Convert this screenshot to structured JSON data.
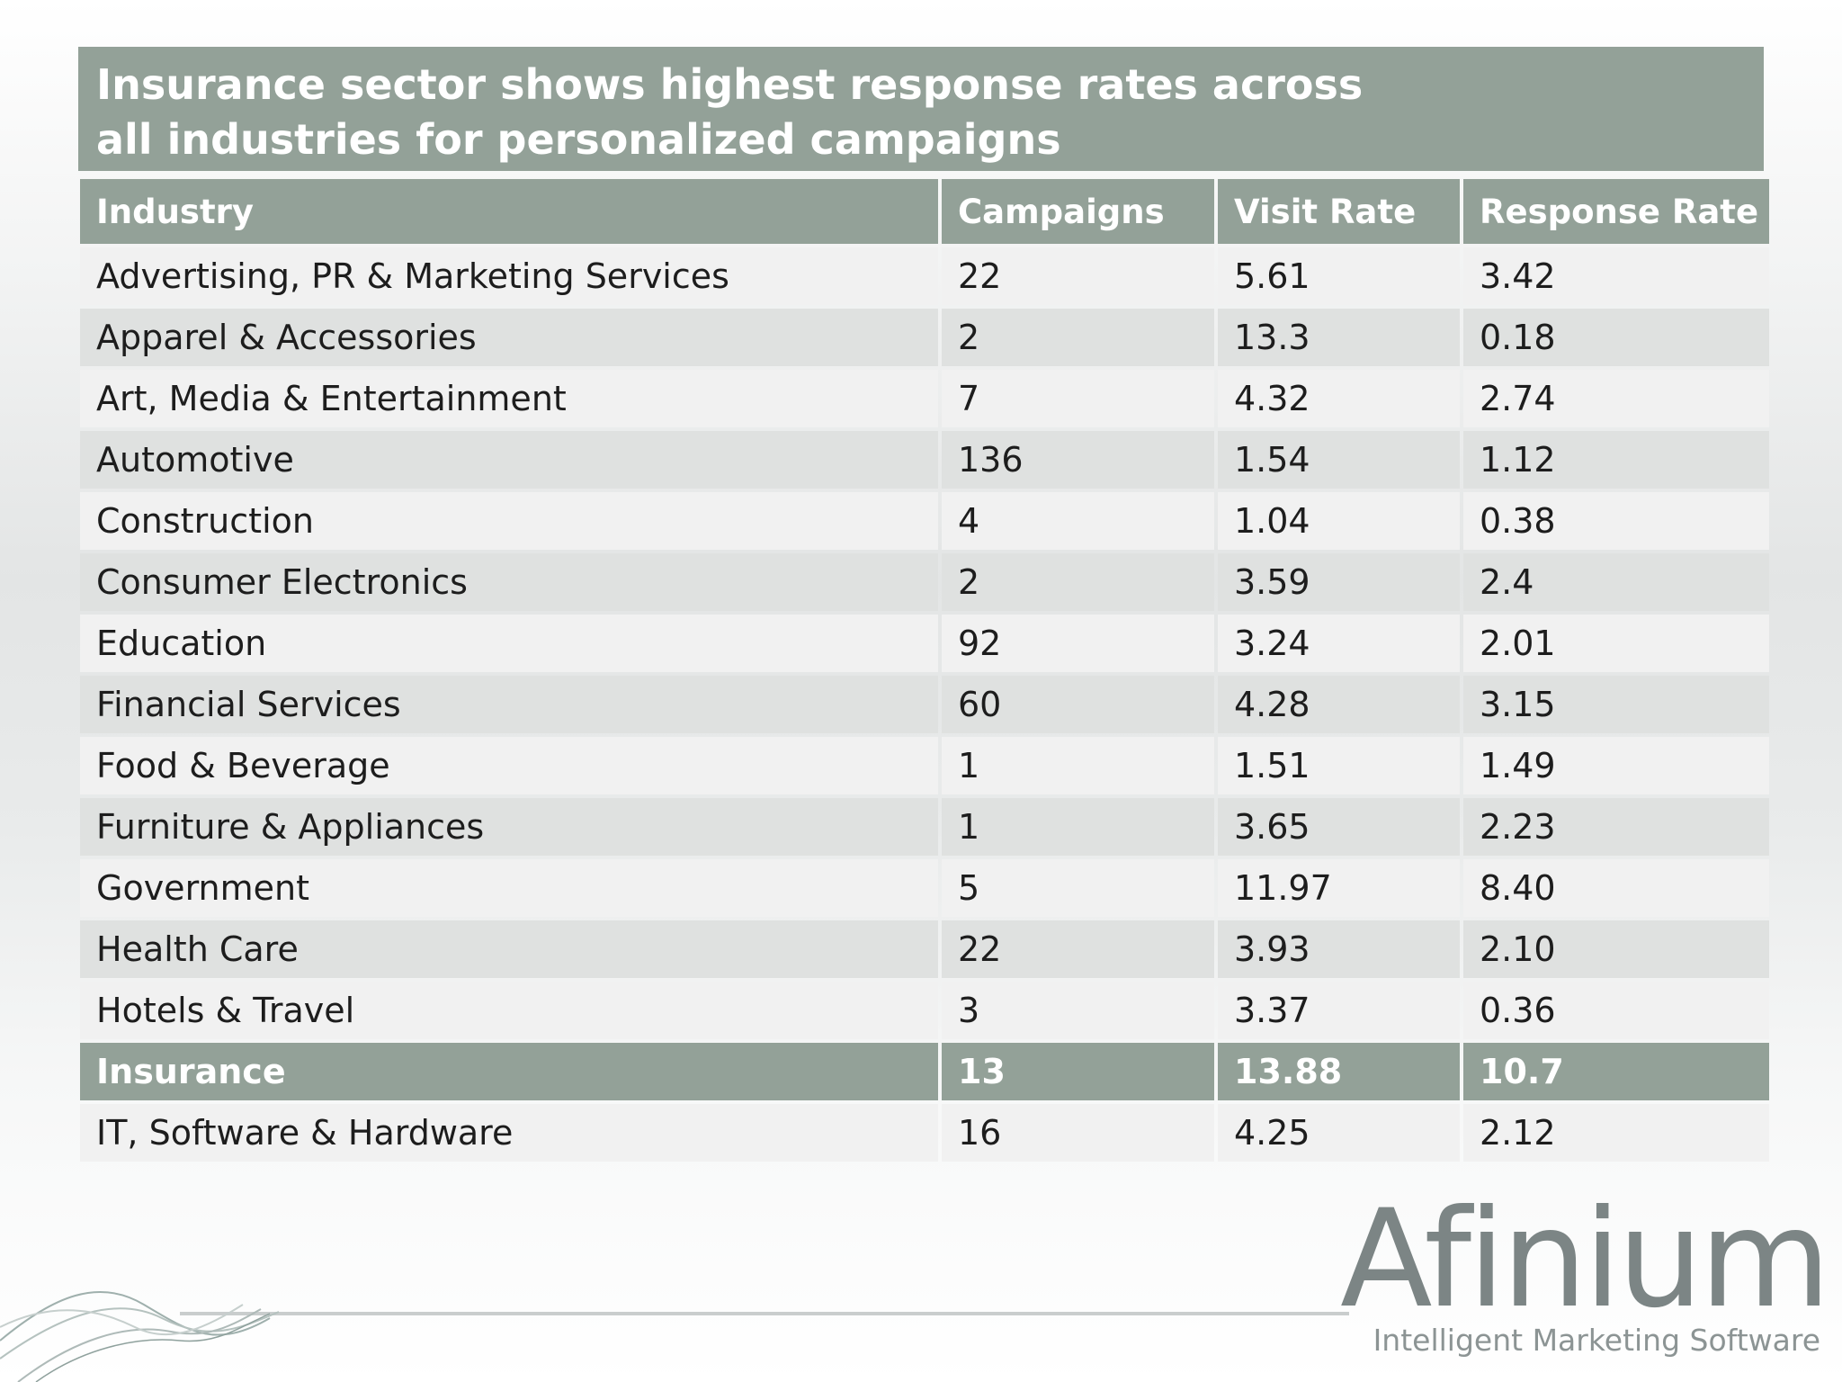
{
  "title": {
    "line1": "Insurance sector shows highest response rates across",
    "line2": "all industries for personalized campaigns"
  },
  "table": {
    "headers": [
      "Industry",
      "Campaigns",
      "Visit Rate",
      "Response Rate"
    ],
    "rows": [
      [
        "Advertising, PR & Marketing Services",
        "22",
        "5.61",
        "3.42"
      ],
      [
        "Apparel & Accessories",
        "2",
        "13.3",
        "0.18"
      ],
      [
        "Art, Media & Entertainment",
        "7",
        "4.32",
        "2.74"
      ],
      [
        "Automotive",
        "136",
        "1.54",
        "1.12"
      ],
      [
        "Construction",
        "4",
        "1.04",
        "0.38"
      ],
      [
        "Consumer Electronics",
        "2",
        "3.59",
        "2.4"
      ],
      [
        "Education",
        "92",
        "3.24",
        "2.01"
      ],
      [
        "Financial Services",
        "60",
        "4.28",
        "3.15"
      ],
      [
        "Food & Beverage",
        "1",
        "1.51",
        "1.49"
      ],
      [
        "Furniture & Appliances",
        "1",
        "3.65",
        "2.23"
      ],
      [
        "Government",
        "5",
        "11.97",
        "8.40"
      ],
      [
        "Health Care",
        "22",
        "3.93",
        "2.10"
      ],
      [
        "Hotels & Travel",
        "3",
        "3.37",
        "0.36"
      ],
      [
        "Insurance",
        "13",
        "13.88",
        "10.7"
      ],
      [
        "IT, Software & Hardware",
        "16",
        "4.25",
        "2.12"
      ]
    ],
    "highlight_row": "Insurance"
  },
  "logo": {
    "name": "Afinium",
    "tagline": "Intelligent Marketing Software"
  },
  "colors": {
    "accent": "#93a198",
    "row_light": "#f1f1f1",
    "row_dark": "#dfe1e0",
    "text": "#1d1d1d",
    "logo_text": "#7c8585"
  }
}
